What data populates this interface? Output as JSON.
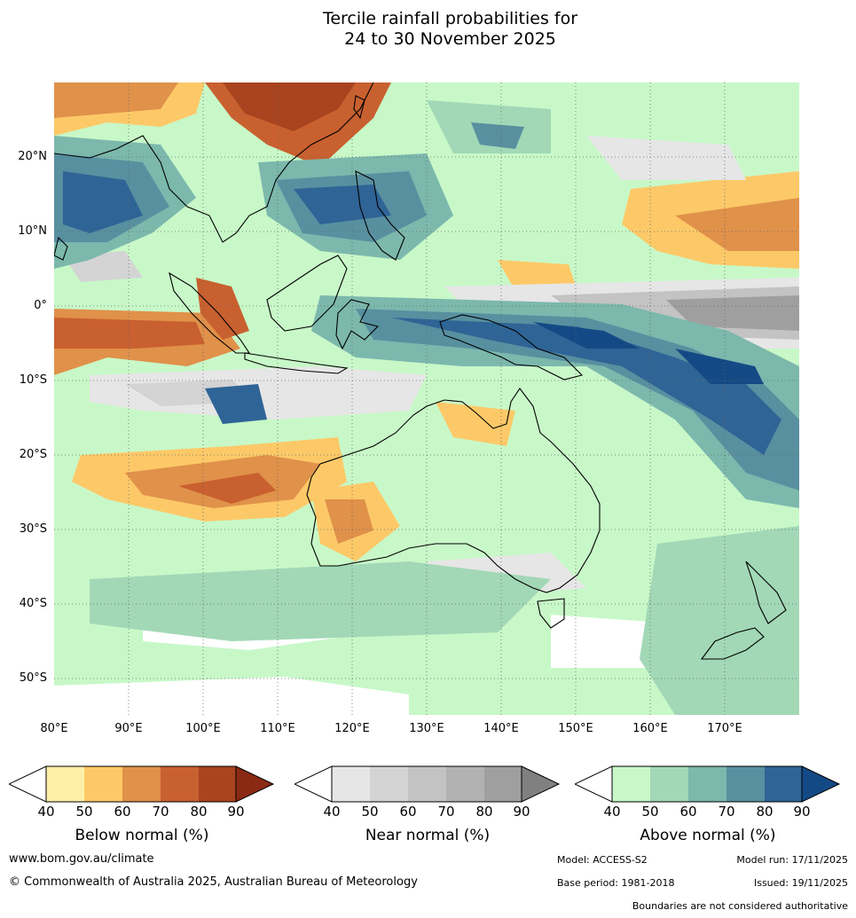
{
  "title_line1": "Tercile rainfall probabilities for",
  "title_line2": "24 to 30 November 2025",
  "lat_ticks": [
    "20°N",
    "10°N",
    "0°",
    "10°S",
    "20°S",
    "30°S",
    "40°S",
    "50°S"
  ],
  "lon_ticks": [
    "80°E",
    "90°E",
    "100°E",
    "110°E",
    "120°E",
    "130°E",
    "140°E",
    "150°E",
    "160°E",
    "170°E"
  ],
  "legends": [
    {
      "label": "Below normal (%)",
      "ticks": [
        "40",
        "50",
        "60",
        "70",
        "80",
        "90"
      ],
      "colors": [
        "#fff0a8",
        "#fdc968",
        "#e0914a",
        "#c9602f",
        "#a8441f",
        "#8b2a14"
      ]
    },
    {
      "label": "Near normal (%)",
      "ticks": [
        "40",
        "50",
        "60",
        "70",
        "80",
        "90"
      ],
      "colors": [
        "#e6e6e6",
        "#d4d4d4",
        "#c3c3c3",
        "#b2b2b2",
        "#9f9f9f",
        "#808080"
      ]
    },
    {
      "label": "Above normal (%)",
      "ticks": [
        "40",
        "50",
        "60",
        "70",
        "80",
        "90"
      ],
      "colors": [
        "#c8f8c8",
        "#a2d8b6",
        "#7cb8ac",
        "#5890a0",
        "#2f6496",
        "#134a85"
      ]
    }
  ],
  "footer": {
    "website": "www.bom.gov.au/climate",
    "copyright": "© Commonwealth of Australia 2025, Australian Bureau of Meteorology",
    "model": "Model: ACCESS-S2",
    "model_run": "Model run: 17/11/2025",
    "base_period": "Base period: 1981-2018",
    "issued": "Issued: 19/11/2025",
    "disclaimer": "Boundaries are not considered authoritative"
  }
}
